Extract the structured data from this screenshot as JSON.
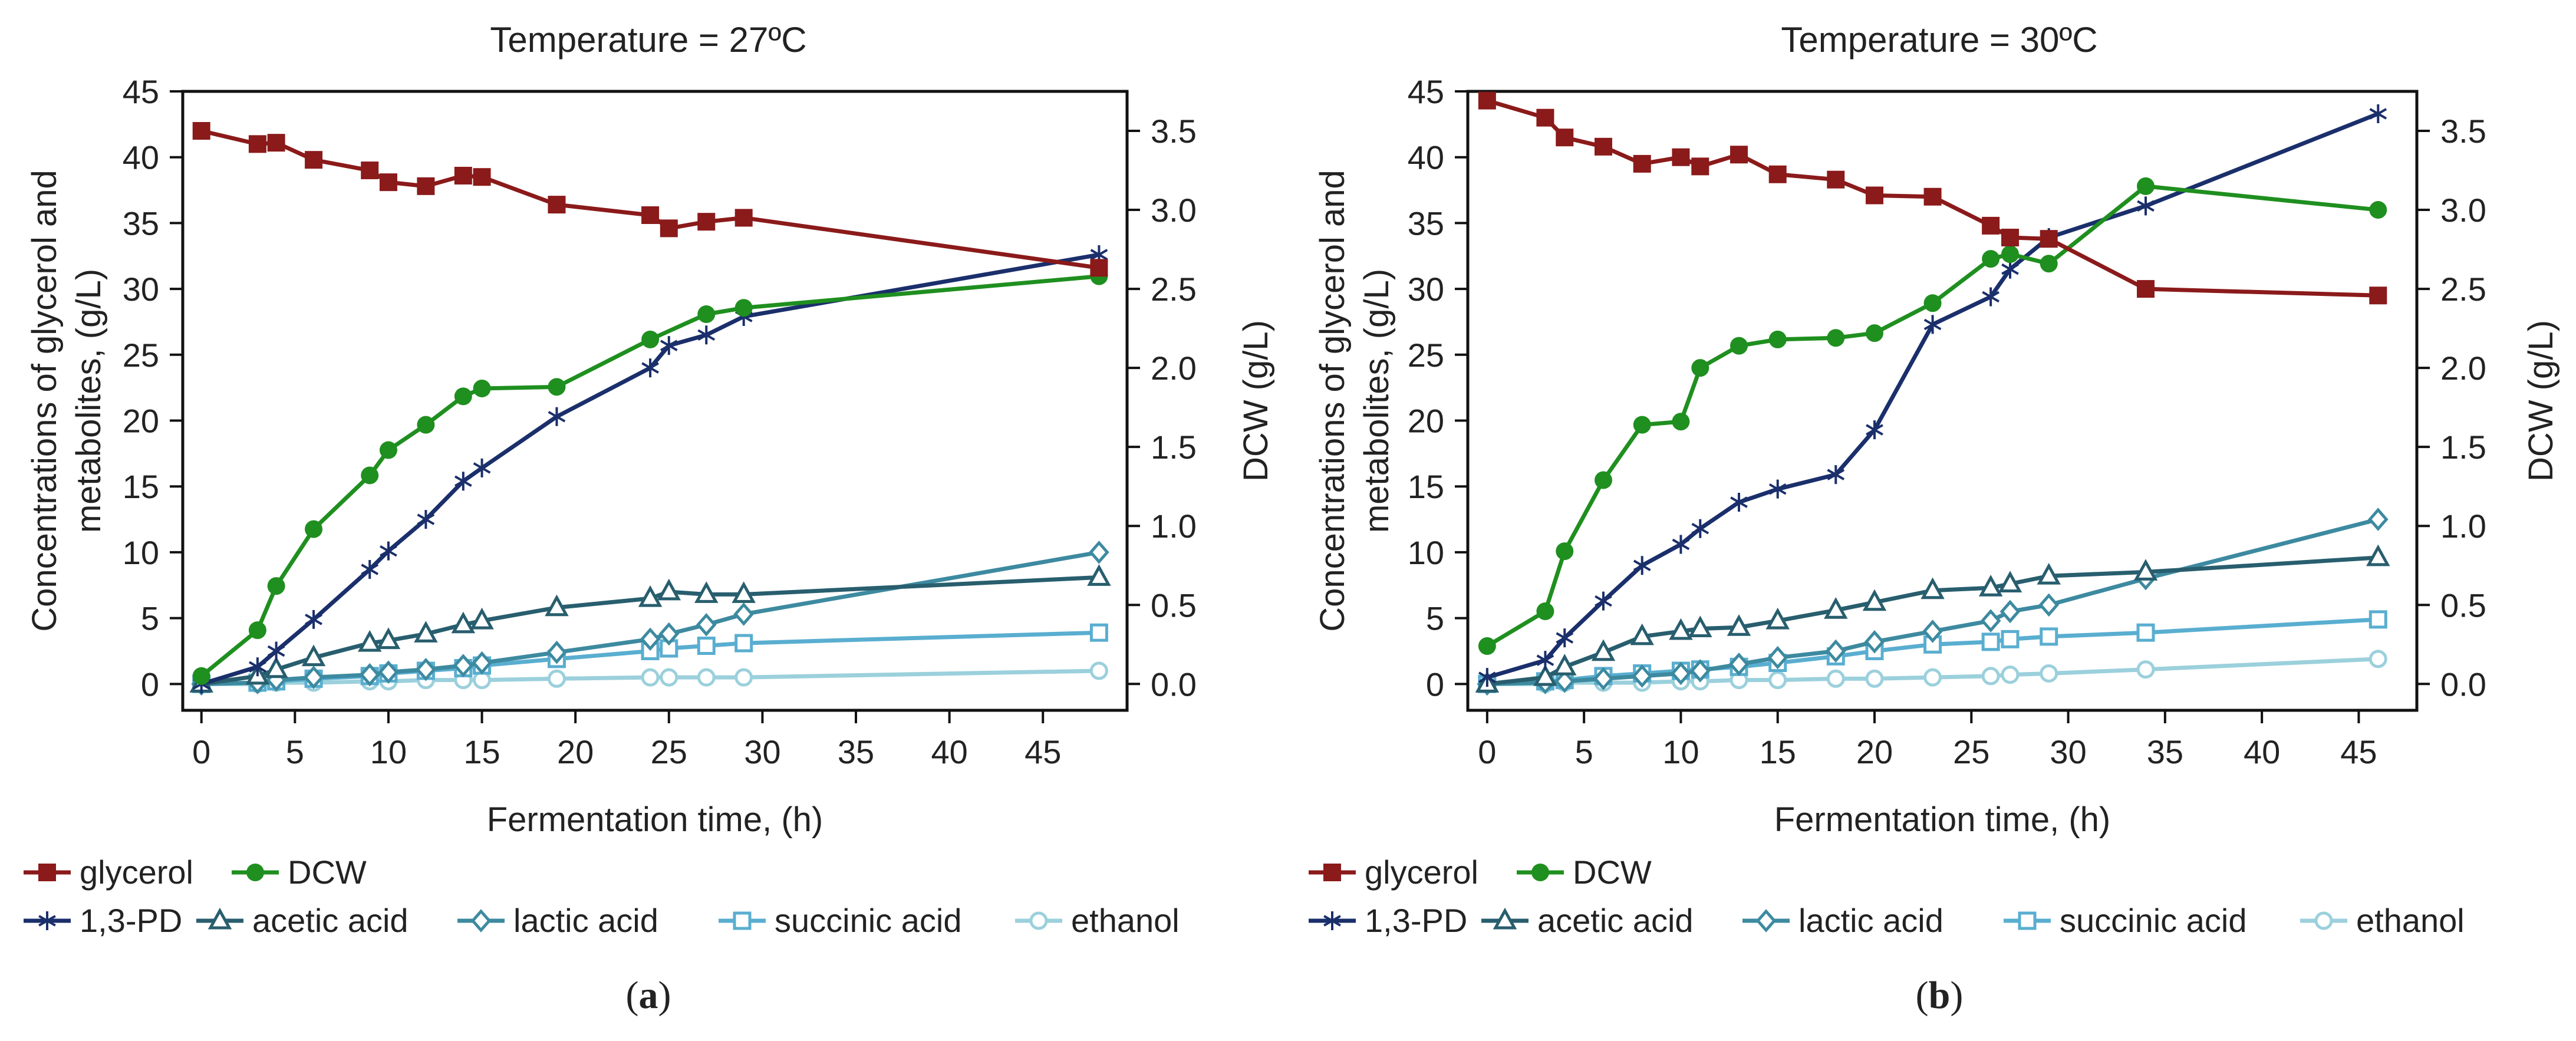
{
  "chart_data": [
    {
      "type": "line",
      "title": "Temperature = 27ºC",
      "caption_open": "(",
      "caption_letter": "a",
      "caption_close": ")",
      "xlabel": "Fermentation time, (h)",
      "ylabel_line1": "Concentrations of glycerol and",
      "ylabel_line2": "metabolites, (g/L)",
      "y2label": "DCW (g/L)",
      "xlim": [
        -1,
        49.5
      ],
      "ylim": [
        -2,
        45
      ],
      "y2lim": [
        -0.1667,
        3.75
      ],
      "x_ticks": [
        0,
        5,
        10,
        15,
        20,
        25,
        30,
        35,
        40,
        45
      ],
      "y_ticks": [
        0,
        5,
        10,
        15,
        20,
        25,
        30,
        35,
        40,
        45
      ],
      "y2_ticks": [
        "0.0",
        "0.5",
        "1.0",
        "1.5",
        "2.0",
        "2.5",
        "3.0",
        "3.5"
      ],
      "legend_row1": [
        "glycerol",
        "DCW"
      ],
      "legend_row2": [
        "1,3-PD",
        "acetic acid",
        "lactic acid",
        "succinic acid",
        "ethanol"
      ],
      "series": [
        {
          "name": "glycerol",
          "axis": "left",
          "color": "#8b1a1a",
          "marker": "square",
          "x": [
            0,
            3,
            4,
            6,
            9,
            10,
            12,
            14,
            15,
            19,
            24,
            25,
            27,
            29,
            48
          ],
          "values": [
            42,
            41,
            41.1,
            39.8,
            39,
            38.1,
            37.8,
            38.6,
            38.5,
            36.4,
            35.6,
            34.6,
            35.1,
            35.4,
            31.6
          ]
        },
        {
          "name": "DCW",
          "axis": "right",
          "color": "#1f8f1f",
          "marker": "circle",
          "x": [
            0,
            3,
            4,
            6,
            9,
            10,
            12,
            14,
            15,
            19,
            24,
            27,
            29,
            48
          ],
          "values": [
            0.05,
            0.34,
            0.62,
            0.98,
            1.32,
            1.48,
            1.64,
            1.82,
            1.87,
            1.88,
            2.18,
            2.34,
            2.38,
            2.58
          ]
        },
        {
          "name": "1,3-PD",
          "axis": "left",
          "color": "#1a2f6b",
          "marker": "star",
          "x": [
            0,
            3,
            4,
            6,
            9,
            10,
            12,
            14,
            15,
            19,
            24,
            25,
            27,
            29,
            48
          ],
          "values": [
            0,
            1.3,
            2.5,
            4.9,
            8.7,
            10.1,
            12.5,
            15.4,
            16.4,
            20.3,
            24,
            25.7,
            26.5,
            27.9,
            32.6
          ]
        },
        {
          "name": "acetic acid",
          "axis": "left",
          "color": "#285e6e",
          "marker": "triangle",
          "x": [
            0,
            3,
            4,
            6,
            9,
            10,
            12,
            14,
            15,
            19,
            24,
            25,
            27,
            29,
            48
          ],
          "values": [
            0,
            0.6,
            1.1,
            2,
            3.1,
            3.3,
            3.8,
            4.5,
            4.8,
            5.8,
            6.5,
            7,
            6.8,
            6.8,
            8.1
          ]
        },
        {
          "name": "lactic acid",
          "axis": "left",
          "color": "#3d8aa0",
          "marker": "diamond",
          "x": [
            0,
            3,
            4,
            6,
            9,
            10,
            12,
            14,
            15,
            19,
            24,
            25,
            27,
            29,
            48
          ],
          "values": [
            0,
            0.1,
            0.3,
            0.5,
            0.7,
            0.9,
            1.1,
            1.4,
            1.6,
            2.4,
            3.4,
            3.8,
            4.5,
            5.3,
            10
          ]
        },
        {
          "name": "succinic acid",
          "axis": "left",
          "color": "#59aed0",
          "marker": "opensquare",
          "x": [
            0,
            3,
            4,
            6,
            9,
            10,
            12,
            14,
            15,
            19,
            24,
            25,
            27,
            29,
            48
          ],
          "values": [
            0,
            0.1,
            0.2,
            0.4,
            0.6,
            0.8,
            1,
            1.2,
            1.4,
            1.9,
            2.5,
            2.7,
            2.9,
            3.1,
            3.9
          ]
        },
        {
          "name": "ethanol",
          "axis": "left",
          "color": "#9bd0dc",
          "marker": "opencircle",
          "x": [
            0,
            3,
            4,
            6,
            9,
            10,
            12,
            14,
            15,
            19,
            24,
            25,
            27,
            29,
            48
          ],
          "values": [
            0,
            0,
            0.1,
            0.1,
            0.2,
            0.2,
            0.3,
            0.3,
            0.3,
            0.4,
            0.5,
            0.5,
            0.5,
            0.5,
            1
          ]
        }
      ]
    },
    {
      "type": "line",
      "title": "Temperature = 30ºC",
      "caption_open": "(",
      "caption_letter": "b",
      "caption_close": ")",
      "xlabel": "Fermentation time, (h)",
      "ylabel_line1": "Concentrations of glycerol and",
      "ylabel_line2": "metabolites, (g/L)",
      "y2label": "DCW (g/L)",
      "xlim": [
        -1,
        48
      ],
      "ylim": [
        -2,
        45
      ],
      "y2lim": [
        -0.1667,
        3.75
      ],
      "x_ticks": [
        0,
        5,
        10,
        15,
        20,
        25,
        30,
        35,
        40,
        45
      ],
      "y_ticks": [
        0,
        5,
        10,
        15,
        20,
        25,
        30,
        35,
        40,
        45
      ],
      "y2_ticks": [
        "0.0",
        "0.5",
        "1.0",
        "1.5",
        "2.0",
        "2.5",
        "3.0",
        "3.5"
      ],
      "legend_row1": [
        "glycerol",
        "DCW"
      ],
      "legend_row2": [
        "1,3-PD",
        "acetic acid",
        "lactic acid",
        "succinic acid",
        "ethanol"
      ],
      "series": [
        {
          "name": "glycerol",
          "axis": "left",
          "color": "#8b1a1a",
          "marker": "square",
          "x": [
            0,
            3,
            4,
            6,
            8,
            10,
            11,
            13,
            15,
            18,
            20,
            23,
            26,
            27,
            29,
            34,
            46
          ],
          "values": [
            44.3,
            43,
            41.5,
            40.8,
            39.5,
            40,
            39.3,
            40.2,
            38.7,
            38.3,
            37.1,
            37,
            34.8,
            33.9,
            33.8,
            30,
            29.5
          ]
        },
        {
          "name": "DCW",
          "axis": "right",
          "color": "#1f8f1f",
          "marker": "circle",
          "x": [
            0,
            3,
            4,
            6,
            8,
            10,
            11,
            13,
            15,
            18,
            20,
            23,
            26,
            27,
            29,
            34,
            46
          ],
          "values": [
            0.24,
            0.46,
            0.84,
            1.29,
            1.64,
            1.66,
            2,
            2.14,
            2.18,
            2.19,
            2.22,
            2.41,
            2.69,
            2.72,
            2.66,
            3.15,
            3
          ]
        },
        {
          "name": "1,3-PD",
          "axis": "left",
          "color": "#1a2f6b",
          "marker": "star",
          "x": [
            0,
            3,
            4,
            6,
            8,
            10,
            11,
            13,
            15,
            18,
            20,
            23,
            26,
            27,
            29,
            34,
            46
          ],
          "values": [
            0.5,
            1.8,
            3.5,
            6.3,
            9,
            10.6,
            11.8,
            13.8,
            14.8,
            15.9,
            19.3,
            27.3,
            29.4,
            31.5,
            33.9,
            36.3,
            43.3
          ]
        },
        {
          "name": "acetic acid",
          "axis": "left",
          "color": "#285e6e",
          "marker": "triangle",
          "x": [
            0,
            3,
            4,
            6,
            8,
            10,
            11,
            13,
            15,
            18,
            20,
            23,
            26,
            27,
            29,
            34,
            46
          ],
          "values": [
            0,
            0.5,
            1.3,
            2.4,
            3.6,
            4,
            4.2,
            4.3,
            4.8,
            5.6,
            6.2,
            7.1,
            7.3,
            7.6,
            8.2,
            8.5,
            9.6
          ]
        },
        {
          "name": "lactic acid",
          "axis": "left",
          "color": "#3d8aa0",
          "marker": "diamond",
          "x": [
            0,
            3,
            4,
            6,
            8,
            10,
            11,
            13,
            15,
            18,
            20,
            23,
            26,
            27,
            29,
            34,
            46
          ],
          "values": [
            0,
            0.1,
            0.2,
            0.4,
            0.6,
            0.8,
            1,
            1.5,
            2,
            2.5,
            3.2,
            4,
            4.8,
            5.5,
            6,
            8,
            12.5
          ]
        },
        {
          "name": "succinic acid",
          "axis": "left",
          "color": "#59aed0",
          "marker": "opensquare",
          "x": [
            0,
            3,
            4,
            6,
            8,
            10,
            11,
            13,
            15,
            18,
            20,
            23,
            26,
            27,
            29,
            34,
            46
          ],
          "values": [
            0,
            0.2,
            0.3,
            0.6,
            0.8,
            1,
            1.1,
            1.3,
            1.6,
            2.1,
            2.5,
            3,
            3.2,
            3.4,
            3.6,
            3.9,
            4.9
          ]
        },
        {
          "name": "ethanol",
          "axis": "left",
          "color": "#9bd0dc",
          "marker": "opencircle",
          "x": [
            0,
            3,
            4,
            6,
            8,
            10,
            11,
            13,
            15,
            18,
            20,
            23,
            26,
            27,
            29,
            34,
            46
          ],
          "values": [
            0,
            0,
            0.1,
            0.1,
            0.1,
            0.2,
            0.2,
            0.3,
            0.3,
            0.4,
            0.4,
            0.5,
            0.6,
            0.7,
            0.8,
            1.1,
            1.9
          ]
        }
      ]
    }
  ]
}
